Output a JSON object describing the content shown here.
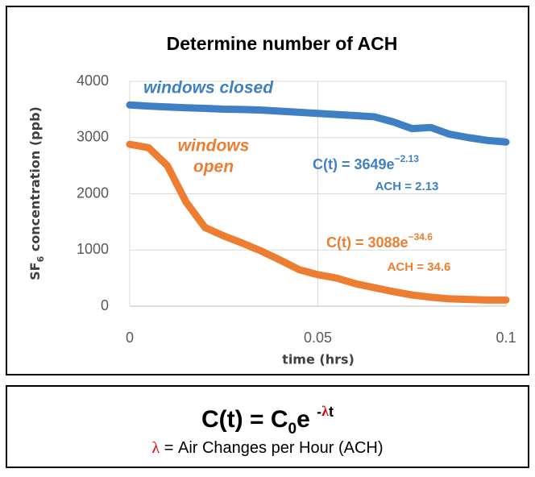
{
  "chart_data": {
    "type": "line",
    "title": "Determine number of ACH",
    "ylabel": {
      "main": "SF",
      "sub": "6",
      "rest": " concentration (ppb)"
    },
    "xlabel": "time (hrs)",
    "x": [
      0,
      0.005,
      0.01,
      0.015,
      0.02,
      0.025,
      0.03,
      0.035,
      0.04,
      0.045,
      0.05,
      0.055,
      0.06,
      0.065,
      0.07,
      0.075,
      0.08,
      0.085,
      0.09,
      0.095,
      0.1
    ],
    "series": [
      {
        "name": "windows closed",
        "color": "#3f7fc4",
        "values": [
          3580,
          3560,
          3545,
          3530,
          3520,
          3505,
          3500,
          3490,
          3470,
          3450,
          3430,
          3410,
          3390,
          3370,
          3280,
          3160,
          3180,
          3060,
          3000,
          2950,
          2920
        ]
      },
      {
        "name": "windows open",
        "color": "#ed7d31",
        "values": [
          2880,
          2820,
          2500,
          1850,
          1400,
          1250,
          1120,
          980,
          820,
          650,
          560,
          500,
          400,
          330,
          260,
          200,
          160,
          130,
          120,
          110,
          110
        ]
      }
    ],
    "annotations": {
      "closed_label": "windows closed",
      "open_label": [
        "windows",
        "open"
      ],
      "closed_eq": {
        "main": "C(t) = 3649e",
        "sup": "−2.13"
      },
      "closed_ach": "ACH = 2.13",
      "open_eq": {
        "main": "C(t) = 3088e",
        "sup": "−34.6"
      },
      "open_ach": "ACH = 34.6"
    },
    "xlim": [
      0,
      0.1
    ],
    "xticks": [
      0,
      0.05,
      0.1
    ],
    "ylim": [
      0,
      4000
    ],
    "yticks": [
      0,
      1000,
      2000,
      3000,
      4000
    ],
    "grid": true
  },
  "formula": {
    "lhs": "C(t) = C",
    "sub": "0",
    "e": "e ",
    "sup_sign": "-",
    "sup_lambda": "λ",
    "sup_t": "t",
    "line2_lambda": "λ",
    "line2_rest": " = Air Changes per Hour (ACH)"
  }
}
